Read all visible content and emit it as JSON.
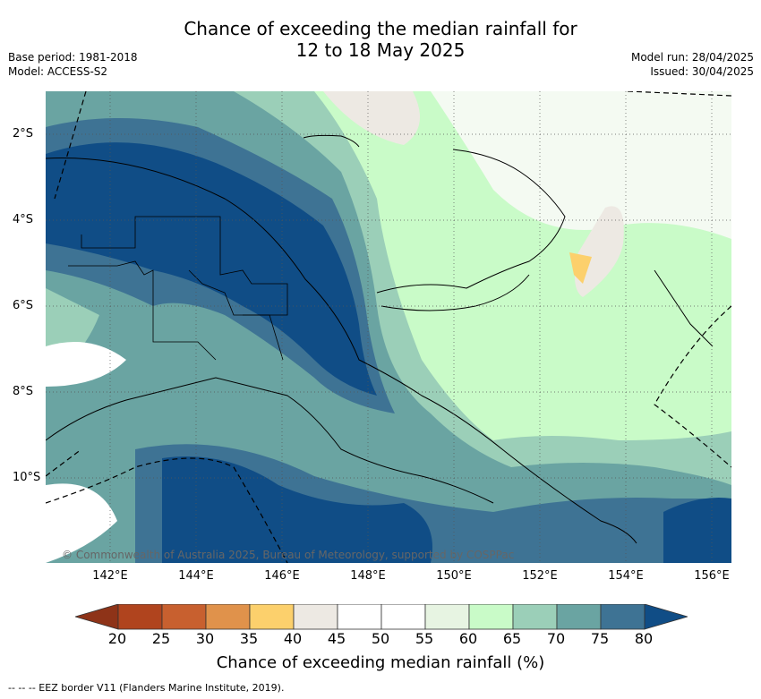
{
  "title": {
    "line1": "Chance of exceeding the median rainfall for",
    "line2": "12 to 18 May 2025"
  },
  "meta_left": {
    "base_period": "Base period: 1981-2018",
    "model": "Model: ACCESS-S2"
  },
  "meta_right": {
    "model_run": "Model run: 28/04/2025",
    "issued": "Issued: 30/04/2025"
  },
  "map": {
    "x_ticks": [
      "142°E",
      "144°E",
      "146°E",
      "148°E",
      "150°E",
      "152°E",
      "154°E",
      "156°E"
    ],
    "y_ticks": [
      "2°S",
      "4°S",
      "6°S",
      "8°S",
      "10°S"
    ],
    "copyright": "© Commonwealth of Australia 2025, Bureau of Meteorology, supported by COSPPac"
  },
  "colorbar": {
    "labels": [
      "20",
      "25",
      "30",
      "35",
      "40",
      "45",
      "50",
      "55",
      "60",
      "65",
      "70",
      "75",
      "80"
    ],
    "colors": [
      "#b0441e",
      "#c8602f",
      "#e0924b",
      "#fcd06c",
      "#ede9e3",
      "#ffffff",
      "#ffffff",
      "#e7f4e2",
      "#c9fbc8",
      "#9bcfb8",
      "#6aa4a2",
      "#3e7394",
      "#104d86"
    ],
    "low_color": "#8e3318",
    "title": "Chance of exceeding median rainfall (%)"
  },
  "footnote": "--  --  -- EEZ border V11 (Flanders Marine Institute, 2019)."
}
